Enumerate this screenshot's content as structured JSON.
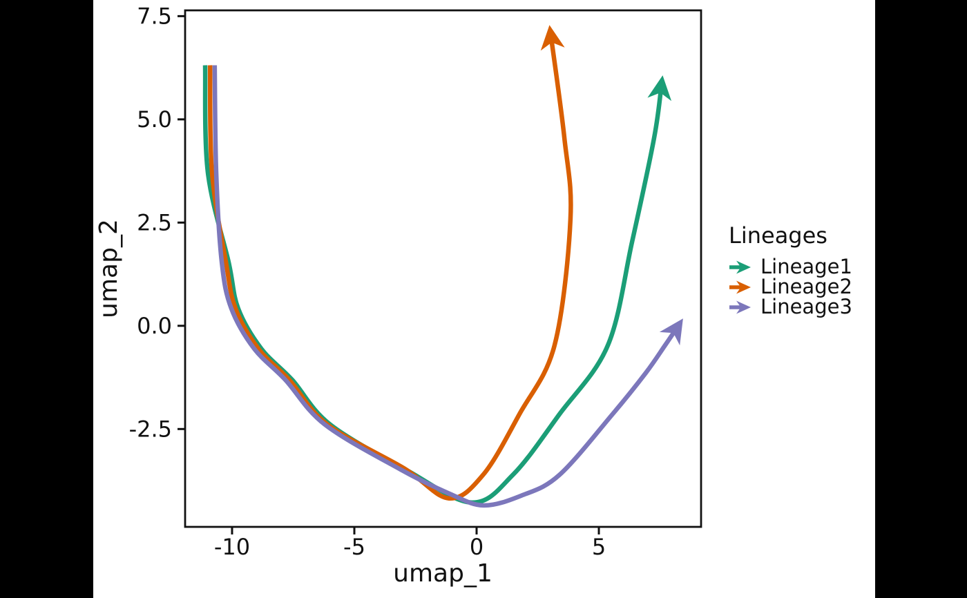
{
  "window": {
    "background": "#000000",
    "plot_background": "#ffffff",
    "text_color": "#111111"
  },
  "chart_data": {
    "type": "line",
    "title": "",
    "xlabel": "umap_1",
    "ylabel": "umap_2",
    "xlim": [
      -11.92,
      9.18
    ],
    "ylim": [
      -4.87,
      7.64
    ],
    "xticks": [
      -10,
      -5,
      0,
      5
    ],
    "xtick_labels": [
      "-10",
      "-5",
      "0",
      "5"
    ],
    "yticks": [
      -2.5,
      0.0,
      2.5,
      5.0,
      7.5
    ],
    "ytick_labels": [
      "-2.5",
      "0.0",
      "2.5",
      "5.0",
      "7.5"
    ],
    "grid": false,
    "panel_border": true,
    "arrows_at_line_ends": true,
    "legend": {
      "title": "Lineages",
      "position": "right",
      "entries": [
        "Lineage1",
        "Lineage2",
        "Lineage3"
      ]
    },
    "series": [
      {
        "name": "Lineage1",
        "color": "#1B9E77",
        "points": [
          [
            -11.1,
            6.31
          ],
          [
            -10.99,
            3.72
          ],
          [
            -10.14,
            1.54
          ],
          [
            -9.75,
            0.42
          ],
          [
            -8.81,
            -0.55
          ],
          [
            -7.54,
            -1.31
          ],
          [
            -5.99,
            -2.39
          ],
          [
            -2.82,
            -3.51
          ],
          [
            -0.2,
            -4.28
          ],
          [
            1.5,
            -3.6
          ],
          [
            3.39,
            -2.14
          ],
          [
            5.37,
            -0.47
          ],
          [
            6.36,
            2.04
          ],
          [
            7.26,
            4.55
          ],
          [
            7.57,
            5.89
          ]
        ]
      },
      {
        "name": "Lineage2",
        "color": "#D95F02",
        "points": [
          [
            -10.9,
            6.31
          ],
          [
            -10.82,
            3.72
          ],
          [
            -10.25,
            1.54
          ],
          [
            -9.86,
            0.42
          ],
          [
            -8.93,
            -0.55
          ],
          [
            -7.66,
            -1.31
          ],
          [
            -6.1,
            -2.39
          ],
          [
            -2.97,
            -3.45
          ],
          [
            -1.13,
            -4.18
          ],
          [
            0.28,
            -3.6
          ],
          [
            1.75,
            -2.14
          ],
          [
            3.19,
            -0.47
          ],
          [
            3.84,
            2.59
          ],
          [
            3.59,
            4.55
          ],
          [
            3.02,
            7.11
          ]
        ]
      },
      {
        "name": "Lineage3",
        "color": "#7C77BB",
        "points": [
          [
            -10.71,
            6.31
          ],
          [
            -10.65,
            3.72
          ],
          [
            -10.42,
            1.54
          ],
          [
            -10.03,
            0.42
          ],
          [
            -9.1,
            -0.55
          ],
          [
            -7.82,
            -1.31
          ],
          [
            -6.21,
            -2.39
          ],
          [
            -3.11,
            -3.48
          ],
          [
            -1.13,
            -4.06
          ],
          [
            0.28,
            -4.35
          ],
          [
            1.84,
            -4.11
          ],
          [
            3.39,
            -3.61
          ],
          [
            5.56,
            -2.14
          ],
          [
            6.92,
            -1.14
          ],
          [
            7.71,
            -0.47
          ],
          [
            8.28,
            0.03
          ]
        ]
      }
    ]
  }
}
